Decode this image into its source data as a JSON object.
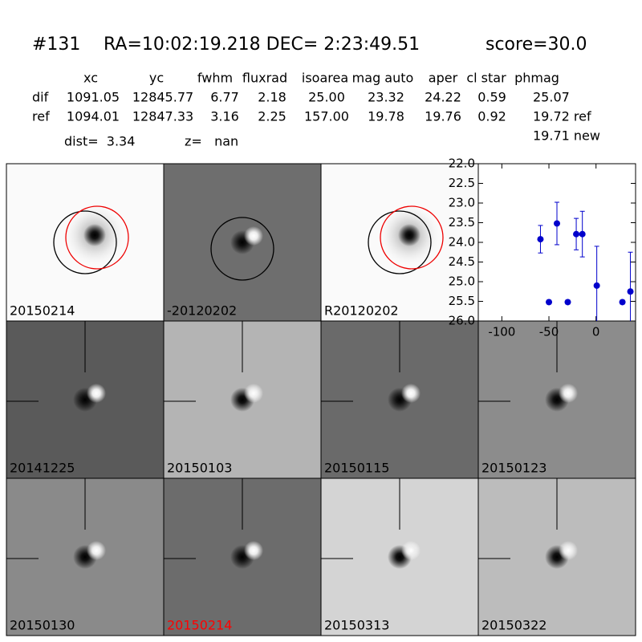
{
  "header": {
    "id": "#131",
    "coords": "RA=10:02:19.218 DEC= 2:23:49.51",
    "score": "score=30.0"
  },
  "table": {
    "columns": [
      "xc",
      "yc",
      "fwhm",
      "fluxrad",
      "isoarea",
      "mag auto",
      "aper",
      "cl star",
      "phmag"
    ],
    "rows": [
      [
        "dif",
        "1091.05",
        "12845.77",
        "6.77",
        "2.18",
        "25.00",
        "23.32",
        "24.22",
        "0.59",
        "25.07"
      ],
      [
        "ref",
        "1094.01",
        "12847.33",
        "3.16",
        "2.25",
        "157.00",
        "19.78",
        "19.76",
        "0.92",
        "19.72 ref"
      ]
    ],
    "extra": "19.71 new"
  },
  "dist": "dist=  3.34",
  "z": "z=   nan",
  "panels": [
    {
      "label": "20150214"
    },
    {
      "label": "-20120202"
    },
    {
      "label": "R20120202"
    },
    {
      "label": "20141225"
    },
    {
      "label": "20150103"
    },
    {
      "label": "20150115"
    },
    {
      "label": "20150123"
    },
    {
      "label": "20150130"
    },
    {
      "label": "20150214",
      "label_color": "#ff0000"
    },
    {
      "label": "20150313"
    },
    {
      "label": "20150322"
    }
  ],
  "chart_data": {
    "type": "scatter",
    "color": "#0000cc",
    "x": [
      -59,
      -50,
      -41.5,
      -30,
      -21,
      -14.5,
      0.8,
      28,
      36.5
    ],
    "values": [
      23.92,
      25.52,
      23.52,
      25.52,
      23.79,
      23.79,
      25.1,
      25.52,
      25.25
    ],
    "errors": [
      0.35,
      0.05,
      0.54,
      0.05,
      0.4,
      0.58,
      1.0,
      0.05,
      1.0
    ],
    "xlim": [
      -125,
      42
    ],
    "xticks": [
      -100,
      -50,
      0
    ],
    "ylim": [
      26,
      22
    ],
    "yticks": [
      {
        "value": 22,
        "label": "22.0"
      },
      {
        "value": 22.5,
        "label": "22.5"
      },
      {
        "value": 23,
        "label": "23.0"
      },
      {
        "value": 23.5,
        "label": "23.5"
      },
      {
        "value": 24,
        "label": "24.0"
      },
      {
        "value": 24.5,
        "label": "24.5"
      },
      {
        "value": 25,
        "label": "25.0"
      },
      {
        "value": 25.5,
        "label": "25.5"
      },
      {
        "value": 26,
        "label": "26.0"
      }
    ]
  }
}
